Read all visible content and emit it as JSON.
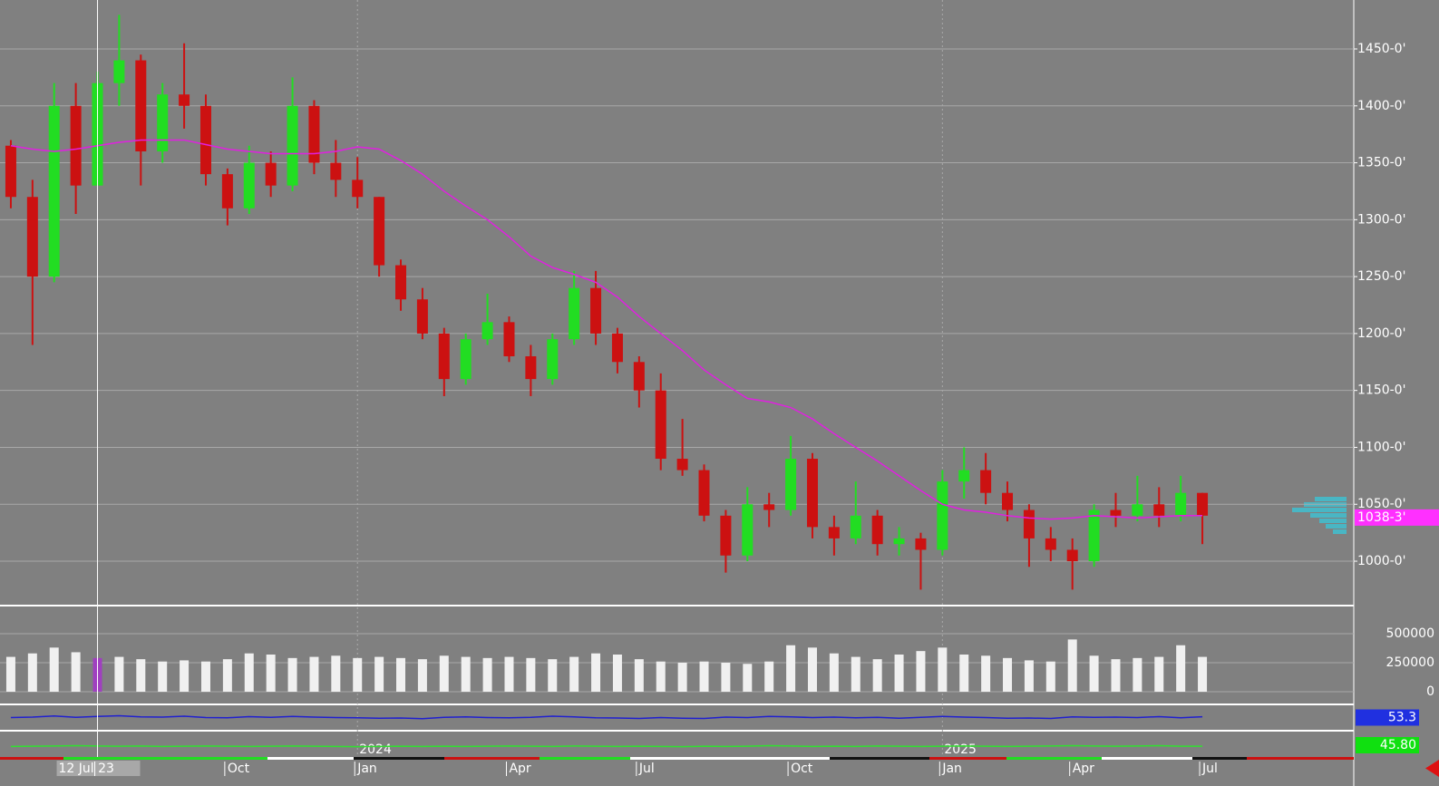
{
  "chart_data": [
    {
      "type": "candlestick",
      "categories": [
        null,
        null,
        null,
        null,
        "12 Jul 23",
        null,
        null,
        null,
        null,
        null,
        "Oct",
        null,
        null,
        null,
        null,
        null,
        "Jan",
        null,
        null,
        null,
        null,
        null,
        null,
        "Apr",
        null,
        null,
        null,
        null,
        null,
        "Jul",
        null,
        null,
        null,
        null,
        null,
        null,
        "Oct",
        null,
        null,
        null,
        null,
        null,
        null,
        "Jan",
        null,
        null,
        null,
        null,
        null,
        "Apr",
        null,
        null,
        null,
        null,
        null,
        "Jul"
      ],
      "year_categories": [
        null,
        null,
        null,
        null,
        null,
        null,
        null,
        null,
        null,
        null,
        null,
        null,
        null,
        null,
        null,
        null,
        "2024",
        null,
        null,
        null,
        null,
        null,
        null,
        null,
        null,
        null,
        null,
        null,
        null,
        null,
        null,
        null,
        null,
        null,
        null,
        null,
        null,
        null,
        null,
        null,
        null,
        null,
        null,
        "2025",
        null,
        null,
        null,
        null,
        null,
        null,
        null,
        null,
        null,
        null,
        null,
        null
      ],
      "open": [
        1365,
        1320,
        1250,
        1400,
        1330,
        1420,
        1440,
        1360,
        1410,
        1400,
        1340,
        1310,
        1350,
        1330,
        1400,
        1350,
        1335,
        1320,
        1260,
        1230,
        1200,
        1160,
        1195,
        1210,
        1180,
        1160,
        1195,
        1240,
        1200,
        1175,
        1150,
        1090,
        1080,
        1040,
        1005,
        1050,
        1045,
        1090,
        1030,
        1020,
        1040,
        1015,
        1020,
        1010,
        1070,
        1080,
        1060,
        1045,
        1020,
        1010,
        1000,
        1045,
        1040,
        1050,
        1040,
        1060
      ],
      "high": [
        1370,
        1335,
        1420,
        1420,
        1430,
        1480,
        1445,
        1420,
        1455,
        1410,
        1345,
        1365,
        1360,
        1425,
        1405,
        1370,
        1355,
        1320,
        1265,
        1240,
        1205,
        1200,
        1235,
        1215,
        1190,
        1200,
        1255,
        1255,
        1205,
        1180,
        1165,
        1125,
        1085,
        1045,
        1065,
        1060,
        1110,
        1095,
        1040,
        1070,
        1045,
        1030,
        1025,
        1080,
        1100,
        1095,
        1070,
        1050,
        1030,
        1020,
        1050,
        1060,
        1075,
        1065,
        1075,
        1060
      ],
      "low": [
        1310,
        1190,
        1245,
        1305,
        1330,
        1400,
        1330,
        1350,
        1380,
        1330,
        1295,
        1305,
        1320,
        1325,
        1340,
        1320,
        1310,
        1250,
        1220,
        1195,
        1145,
        1155,
        1190,
        1175,
        1145,
        1155,
        1190,
        1190,
        1165,
        1135,
        1080,
        1075,
        1035,
        990,
        1000,
        1030,
        1040,
        1020,
        1005,
        1015,
        1005,
        1005,
        975,
        1005,
        1055,
        1050,
        1035,
        995,
        1000,
        975,
        995,
        1030,
        1035,
        1030,
        1035,
        1015
      ],
      "close": [
        1320,
        1250,
        1400,
        1330,
        1420,
        1440,
        1360,
        1410,
        1400,
        1340,
        1310,
        1350,
        1330,
        1400,
        1350,
        1335,
        1320,
        1260,
        1230,
        1200,
        1160,
        1195,
        1210,
        1180,
        1160,
        1195,
        1240,
        1200,
        1175,
        1150,
        1090,
        1080,
        1040,
        1005,
        1050,
        1045,
        1090,
        1030,
        1020,
        1040,
        1015,
        1020,
        1010,
        1070,
        1080,
        1060,
        1045,
        1020,
        1010,
        1000,
        1045,
        1040,
        1050,
        1040,
        1060,
        1040
      ],
      "up_color": "#22dd22",
      "down_color": "#cc1111",
      "series": [
        {
          "color": "#e020e0",
          "values": [
            1365,
            1362,
            1360,
            1362,
            1365,
            1368,
            1370,
            1370,
            1370,
            1366,
            1362,
            1360,
            1358,
            1358,
            1358,
            1360,
            1364,
            1362,
            1352,
            1340,
            1325,
            1312,
            1300,
            1285,
            1268,
            1258,
            1252,
            1245,
            1232,
            1215,
            1200,
            1185,
            1168,
            1155,
            1143,
            1140,
            1135,
            1125,
            1112,
            1100,
            1088,
            1075,
            1062,
            1050,
            1045,
            1043,
            1040,
            1038,
            1037,
            1038,
            1040,
            1039,
            1038,
            1039,
            1040,
            1040
          ]
        }
      ],
      "price_marker": {
        "value": 1038.375,
        "label": "1038-3'"
      },
      "ylim": [
        961,
        1493
      ],
      "yticks": [
        {
          "value": 1000,
          "label": "1000-0'"
        },
        {
          "value": 1050,
          "label": "1050-0'"
        },
        {
          "value": 1100,
          "label": "1100-0'"
        },
        {
          "value": 1150,
          "label": "1150-0'"
        },
        {
          "value": 1200,
          "label": "1200-0'"
        },
        {
          "value": 1250,
          "label": "1250-0'"
        },
        {
          "value": 1300,
          "label": "1300-0'"
        },
        {
          "value": 1350,
          "label": "1350-0'"
        },
        {
          "value": 1400,
          "label": "1400-0'"
        },
        {
          "value": 1450,
          "label": "1450-0'"
        }
      ],
      "grid": true
    },
    {
      "type": "bar",
      "color": "#f0f0f0",
      "highlight_color": "#a040c0",
      "values": [
        300000,
        330000,
        380000,
        340000,
        290000,
        300000,
        280000,
        260000,
        270000,
        260000,
        280000,
        330000,
        320000,
        290000,
        300000,
        310000,
        290000,
        300000,
        290000,
        280000,
        310000,
        300000,
        290000,
        300000,
        290000,
        280000,
        300000,
        330000,
        320000,
        280000,
        260000,
        250000,
        260000,
        250000,
        240000,
        260000,
        400000,
        380000,
        330000,
        300000,
        280000,
        320000,
        350000,
        380000,
        320000,
        310000,
        290000,
        270000,
        260000,
        450000,
        310000,
        280000,
        290000,
        300000,
        400000,
        300000
      ],
      "ylim": [
        0,
        726000
      ],
      "yticks": [
        0,
        250000,
        500000
      ]
    },
    {
      "type": "line",
      "color": "#2020d0",
      "label_bg": "#2030e0",
      "values": [
        50,
        52,
        57,
        51,
        55,
        58,
        53,
        52,
        56,
        50,
        49,
        54,
        51,
        55,
        52,
        50,
        49,
        47,
        48,
        45,
        51,
        53,
        50,
        49,
        51,
        56,
        53,
        49,
        48,
        46,
        50,
        47,
        46,
        52,
        50,
        55,
        53,
        50,
        52,
        49,
        51,
        47,
        51,
        55,
        52,
        50,
        47,
        48,
        46,
        53,
        51,
        52,
        50,
        54,
        49,
        53.3
      ],
      "ylim": [
        0,
        100
      ]
    },
    {
      "type": "line",
      "color": "#30e030",
      "label_bg": "#10e010",
      "values": [
        45,
        46,
        47,
        48,
        47,
        46,
        47,
        45,
        46,
        47,
        46,
        45,
        46,
        47,
        46,
        45,
        44,
        45,
        46,
        45,
        46,
        45,
        46,
        47,
        46,
        45,
        47,
        46,
        45,
        46,
        45,
        44,
        46,
        45,
        46,
        48,
        47,
        45,
        46,
        45,
        47,
        46,
        45,
        46,
        47,
        46,
        45,
        46,
        47,
        48,
        47,
        46,
        47,
        48,
        46,
        45.8
      ],
      "value_labels": [
        null,
        null,
        null,
        null,
        null,
        null,
        null,
        null,
        null,
        null,
        null,
        null,
        null,
        null,
        null,
        null,
        null,
        null,
        null,
        null,
        null,
        null,
        null,
        null,
        null,
        null,
        null,
        null,
        null,
        null,
        null,
        null,
        null,
        null,
        null,
        null,
        null,
        null,
        null,
        null,
        null,
        null,
        null,
        null,
        null,
        null,
        null,
        null,
        null,
        null,
        null,
        null,
        null,
        null,
        null,
        "45.80"
      ],
      "ylim": [
        0,
        100
      ]
    }
  ]
}
